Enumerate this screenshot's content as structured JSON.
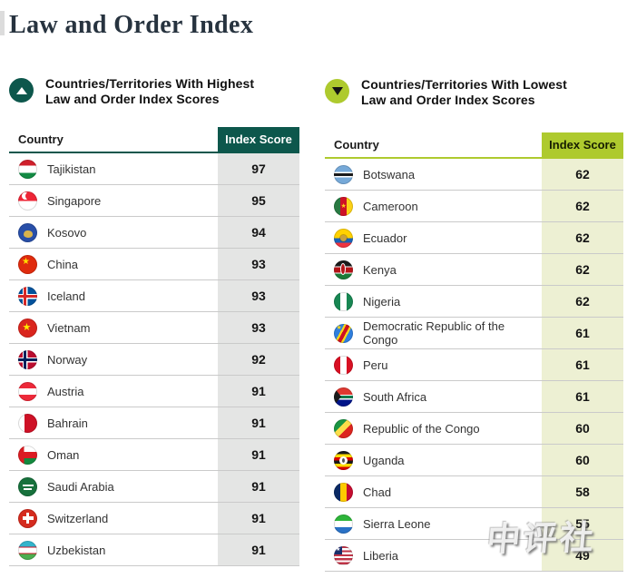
{
  "page": {
    "title": "Law and Order Index",
    "title_color": "#27333f",
    "row_border_color": "#cacaca",
    "watermark": "中评社"
  },
  "sections": [
    {
      "id": "highest",
      "icon": "up-triangle-icon",
      "heading": "Countries/Territories With Highest\nLaw and Order Index Scores",
      "accent_color": "#0d574c",
      "score_column_color": "#e4e5e4",
      "score_header_text_color": "#ffffff",
      "header": {
        "country": "Country",
        "score": "Index Score"
      },
      "rows": [
        {
          "country": "Tajikistan",
          "score": "97",
          "flag": "tajikistan"
        },
        {
          "country": "Singapore",
          "score": "95",
          "flag": "singapore"
        },
        {
          "country": "Kosovo",
          "score": "94",
          "flag": "kosovo"
        },
        {
          "country": "China",
          "score": "93",
          "flag": "china"
        },
        {
          "country": "Iceland",
          "score": "93",
          "flag": "iceland"
        },
        {
          "country": "Vietnam",
          "score": "93",
          "flag": "vietnam"
        },
        {
          "country": "Norway",
          "score": "92",
          "flag": "norway"
        },
        {
          "country": "Austria",
          "score": "91",
          "flag": "austria"
        },
        {
          "country": "Bahrain",
          "score": "91",
          "flag": "bahrain"
        },
        {
          "country": "Oman",
          "score": "91",
          "flag": "oman"
        },
        {
          "country": "Saudi Arabia",
          "score": "91",
          "flag": "saudi-arabia"
        },
        {
          "country": "Switzerland",
          "score": "91",
          "flag": "switzerland"
        },
        {
          "country": "Uzbekistan",
          "score": "91",
          "flag": "uzbekistan"
        }
      ]
    },
    {
      "id": "lowest",
      "icon": "down-triangle-icon",
      "heading": "Countries/Territories With Lowest\nLaw and Order Index Scores",
      "accent_color": "#aeca2e",
      "score_column_color": "#edf0d3",
      "score_header_text_color": "#161d00",
      "header": {
        "country": "Country",
        "score": "Index Score"
      },
      "rows": [
        {
          "country": "Botswana",
          "score": "62",
          "flag": "botswana"
        },
        {
          "country": "Cameroon",
          "score": "62",
          "flag": "cameroon"
        },
        {
          "country": "Ecuador",
          "score": "62",
          "flag": "ecuador"
        },
        {
          "country": "Kenya",
          "score": "62",
          "flag": "kenya"
        },
        {
          "country": "Nigeria",
          "score": "62",
          "flag": "nigeria"
        },
        {
          "country": "Democratic Republic of the Congo",
          "score": "61",
          "flag": "democratic-republic-of-the-congo"
        },
        {
          "country": "Peru",
          "score": "61",
          "flag": "peru"
        },
        {
          "country": "South Africa",
          "score": "61",
          "flag": "south-africa"
        },
        {
          "country": "Republic of the Congo",
          "score": "60",
          "flag": "republic-of-the-congo"
        },
        {
          "country": "Uganda",
          "score": "60",
          "flag": "uganda"
        },
        {
          "country": "Chad",
          "score": "58",
          "flag": "chad"
        },
        {
          "country": "Sierra Leone",
          "score": "55",
          "flag": "sierra-leone"
        },
        {
          "country": "Liberia",
          "score": "49",
          "flag": "liberia"
        }
      ]
    }
  ],
  "chart_data": [
    {
      "type": "table",
      "title": "Countries/Territories With Highest Law and Order Index Scores",
      "columns": [
        "Country",
        "Index Score"
      ],
      "rows": [
        [
          "Tajikistan",
          97
        ],
        [
          "Singapore",
          95
        ],
        [
          "Kosovo",
          94
        ],
        [
          "China",
          93
        ],
        [
          "Iceland",
          93
        ],
        [
          "Vietnam",
          93
        ],
        [
          "Norway",
          92
        ],
        [
          "Austria",
          91
        ],
        [
          "Bahrain",
          91
        ],
        [
          "Oman",
          91
        ],
        [
          "Saudi Arabia",
          91
        ],
        [
          "Switzerland",
          91
        ],
        [
          "Uzbekistan",
          91
        ]
      ]
    },
    {
      "type": "table",
      "title": "Countries/Territories With Lowest Law and Order Index Scores",
      "columns": [
        "Country",
        "Index Score"
      ],
      "rows": [
        [
          "Botswana",
          62
        ],
        [
          "Cameroon",
          62
        ],
        [
          "Ecuador",
          62
        ],
        [
          "Kenya",
          62
        ],
        [
          "Nigeria",
          62
        ],
        [
          "Democratic Republic of the Congo",
          61
        ],
        [
          "Peru",
          61
        ],
        [
          "South Africa",
          61
        ],
        [
          "Republic of the Congo",
          60
        ],
        [
          "Uganda",
          60
        ],
        [
          "Chad",
          58
        ],
        [
          "Sierra Leone",
          55
        ],
        [
          "Liberia",
          49
        ]
      ]
    }
  ]
}
